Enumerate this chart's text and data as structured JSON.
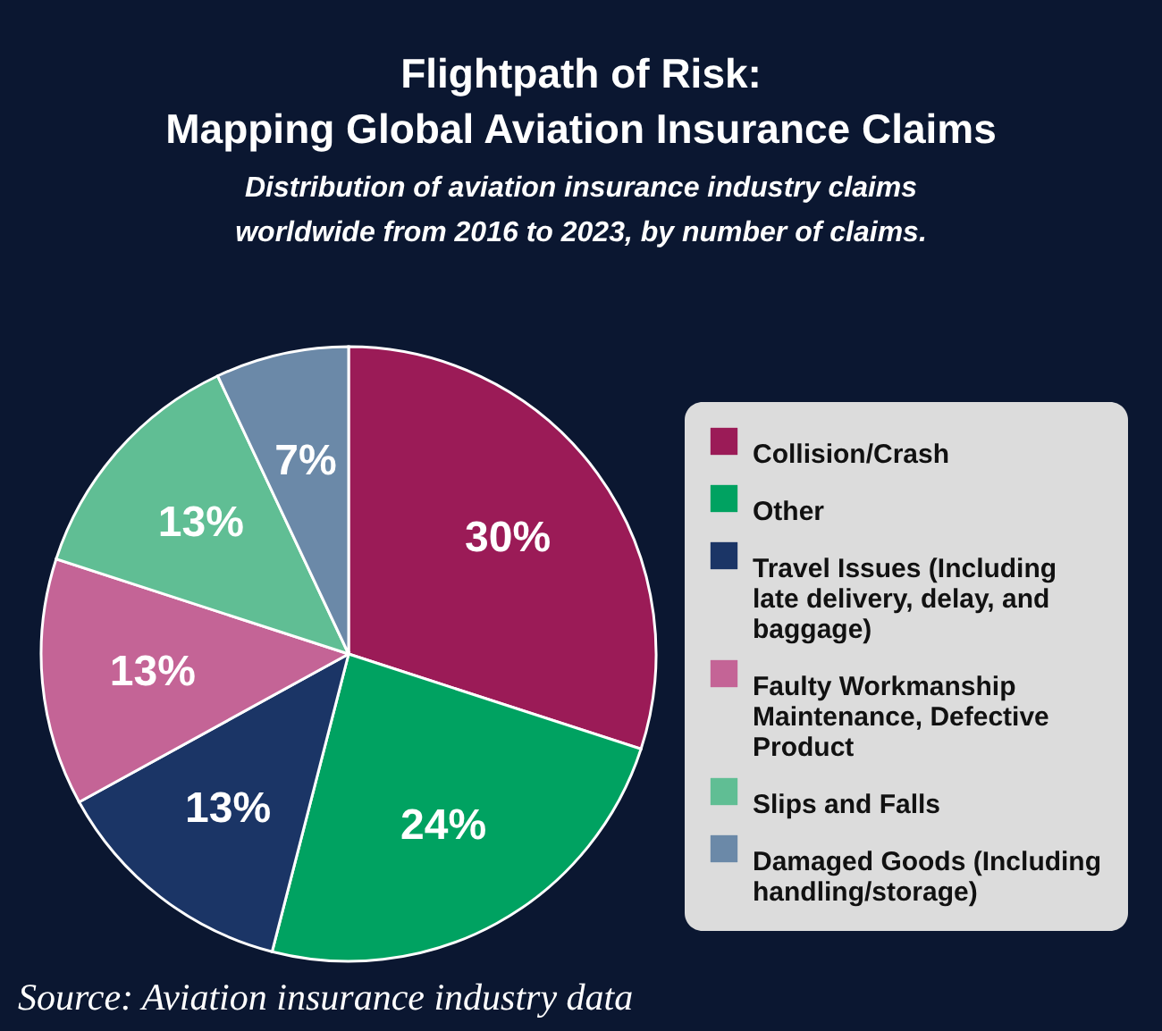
{
  "chart_data": {
    "type": "pie",
    "title": "Flightpath of Risk:\nMapping Global Aviation Insurance Claims",
    "subtitle": "Distribution of aviation insurance industry claims worldwide from 2016 to 2023, by number of claims.",
    "categories": [
      "Collision/Crash",
      "Other",
      "Travel Issues (Including late delivery, delay, and baggage)",
      "Faulty Workmanship Maintenance, Defective Product",
      "Slips and Falls",
      "Damaged Goods (Including handling/storage)"
    ],
    "values": [
      30,
      24,
      13,
      13,
      13,
      7
    ],
    "colors": [
      "#9b1b57",
      "#00a261",
      "#1b3566",
      "#c46496",
      "#60be94",
      "#6b89a8"
    ],
    "value_labels": [
      "30%",
      "24%",
      "13%",
      "13%",
      "13%",
      "7%"
    ],
    "legend": "right",
    "annotations": [
      "Source: Aviation insurance industry data"
    ]
  }
}
